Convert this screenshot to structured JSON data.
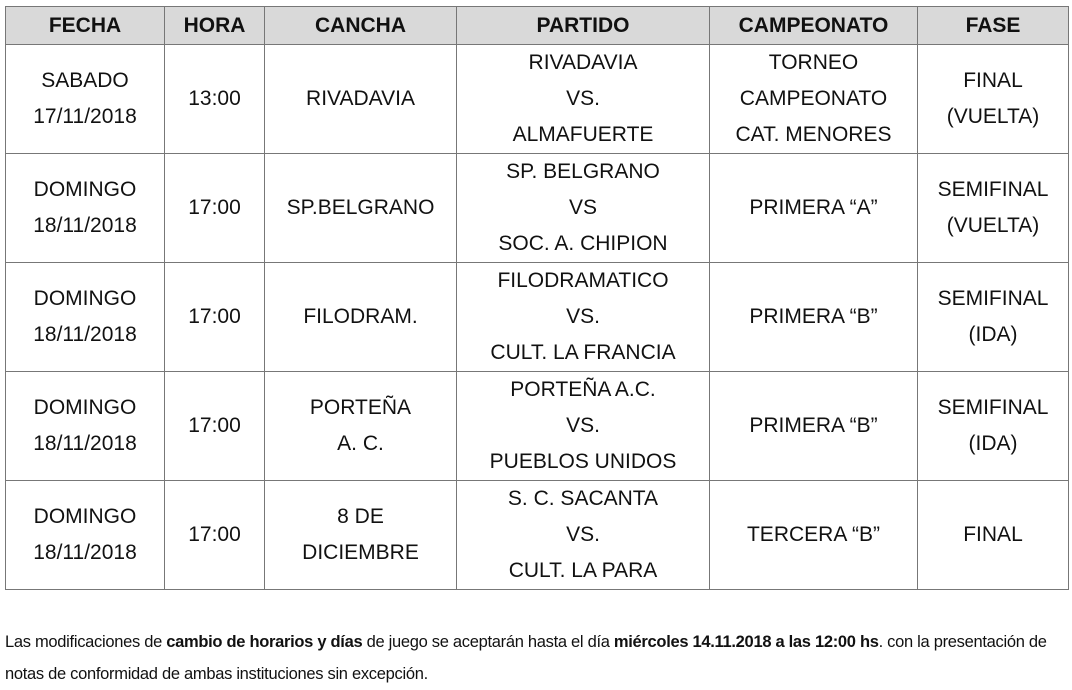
{
  "table": {
    "headers": [
      "FECHA",
      "HORA",
      "CANCHA",
      "PARTIDO",
      "CAMPEONATO",
      "FASE"
    ],
    "rows": [
      {
        "fecha": [
          "SABADO",
          "17/11/2018"
        ],
        "hora": "13:00",
        "cancha": [
          "RIVADAVIA"
        ],
        "partido": [
          "RIVADAVIA",
          "VS.",
          "ALMAFUERTE"
        ],
        "campeonato": [
          "TORNEO",
          "CAMPEONATO",
          "CAT. MENORES"
        ],
        "fase": [
          "FINAL",
          "(VUELTA)"
        ]
      },
      {
        "fecha": [
          "DOMINGO",
          "18/11/2018"
        ],
        "hora": "17:00",
        "cancha": [
          "SP.BELGRANO"
        ],
        "partido": [
          "SP. BELGRANO",
          "VS",
          "SOC. A. CHIPION"
        ],
        "campeonato": [
          "PRIMERA “A”"
        ],
        "fase": [
          "SEMIFINAL",
          "(VUELTA)"
        ]
      },
      {
        "fecha": [
          "DOMINGO",
          "18/11/2018"
        ],
        "hora": "17:00",
        "cancha": [
          "FILODRAM."
        ],
        "partido": [
          "FILODRAMATICO",
          "VS.",
          "CULT. LA FRANCIA"
        ],
        "campeonato": [
          "PRIMERA “B”"
        ],
        "fase": [
          "SEMIFINAL",
          "(IDA)"
        ]
      },
      {
        "fecha": [
          "DOMINGO",
          "18/11/2018"
        ],
        "hora": "17:00",
        "cancha": [
          "PORTEÑA",
          "A. C."
        ],
        "partido": [
          "PORTEÑA A.C.",
          "VS.",
          "PUEBLOS UNIDOS"
        ],
        "campeonato": [
          "PRIMERA “B”"
        ],
        "fase": [
          "SEMIFINAL",
          "(IDA)"
        ]
      },
      {
        "fecha": [
          "DOMINGO",
          "18/11/2018"
        ],
        "hora": "17:00",
        "cancha": [
          "8 DE",
          "DICIEMBRE"
        ],
        "partido": [
          "S. C. SACANTA",
          "VS.",
          "CULT. LA PARA"
        ],
        "campeonato": [
          "TERCERA “B”"
        ],
        "fase": [
          "FINAL"
        ]
      }
    ]
  },
  "footer": {
    "segments": [
      {
        "text": "Las modificaciones de ",
        "bold": false
      },
      {
        "text": "cambio de horarios y días",
        "bold": true
      },
      {
        "text": " de juego se aceptarán hasta el día ",
        "bold": false
      },
      {
        "text": "miércoles 14.11.2018 a las 12:00 hs",
        "bold": true
      },
      {
        "text": ". con la presentación de notas de conformidad de ambas instituciones sin excepción.",
        "bold": false
      }
    ]
  }
}
